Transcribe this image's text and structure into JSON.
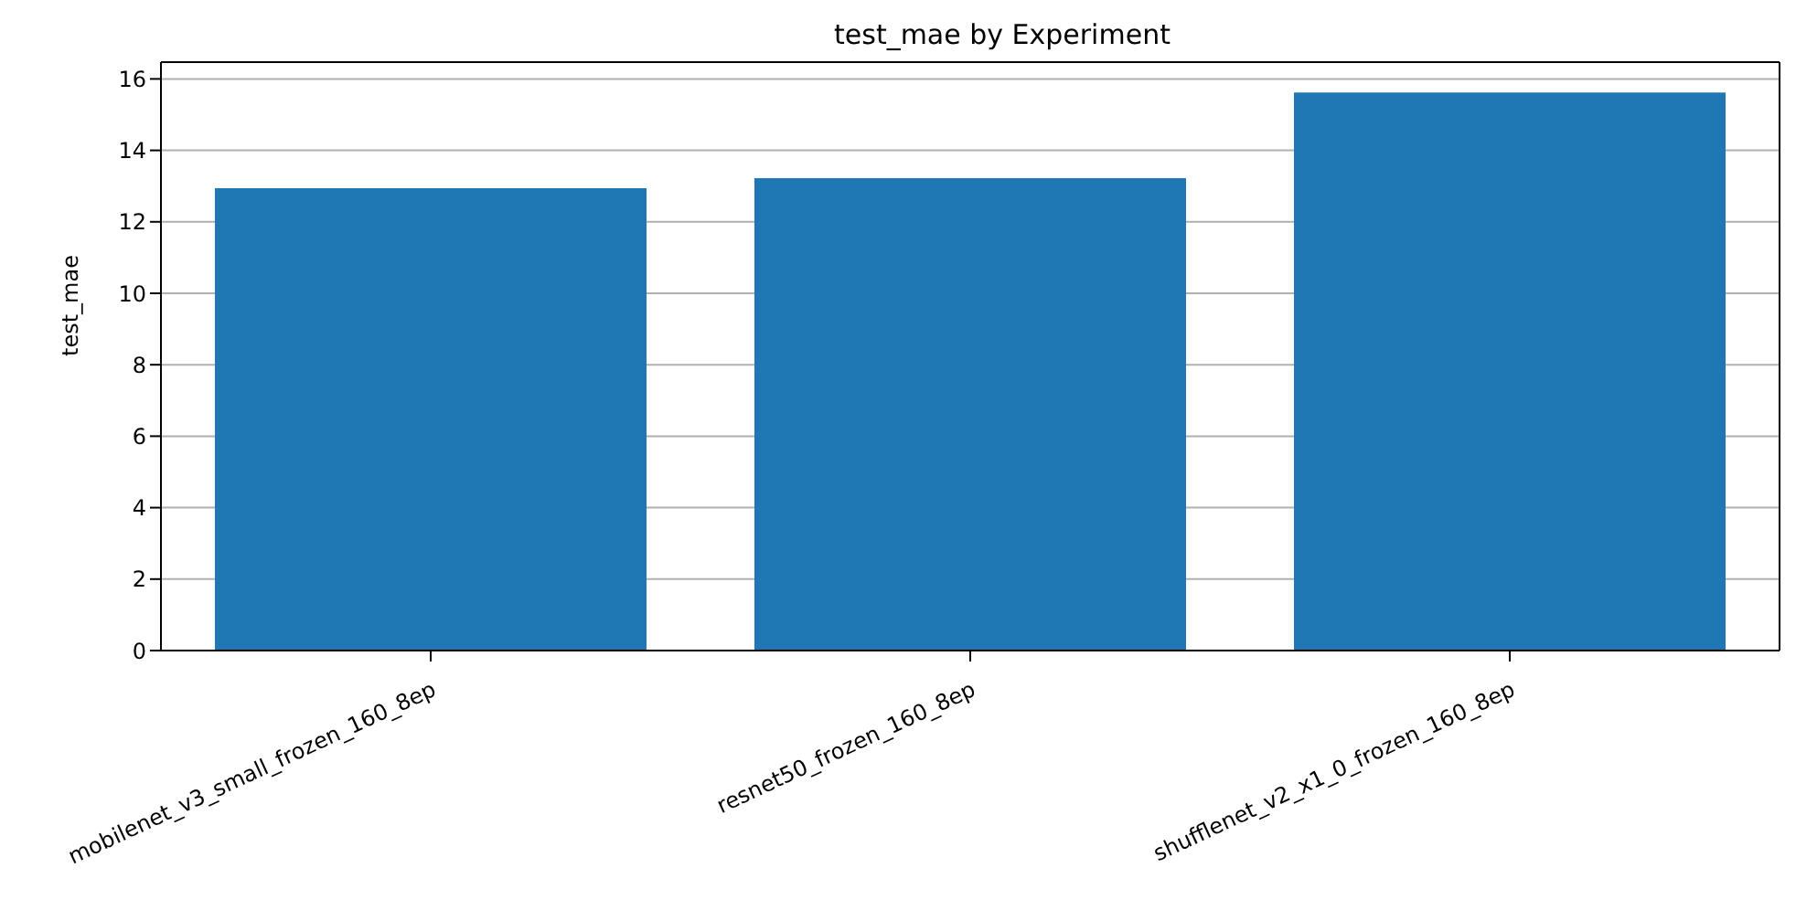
{
  "chart_data": {
    "type": "bar",
    "title": "test_mae by Experiment",
    "ylabel": "test_mae",
    "categories": [
      "mobilenet_v3_small_frozen_160_8ep",
      "resnet50_frozen_160_8ep",
      "shufflenet_v2_x1_0_frozen_160_8ep"
    ],
    "values": [
      12.94,
      13.22,
      15.62
    ],
    "color": "#1f77b4",
    "ylim": [
      0,
      16.47
    ],
    "yticks": [
      0,
      2,
      4,
      6,
      8,
      10,
      12,
      14,
      16
    ],
    "grid": "y"
  }
}
